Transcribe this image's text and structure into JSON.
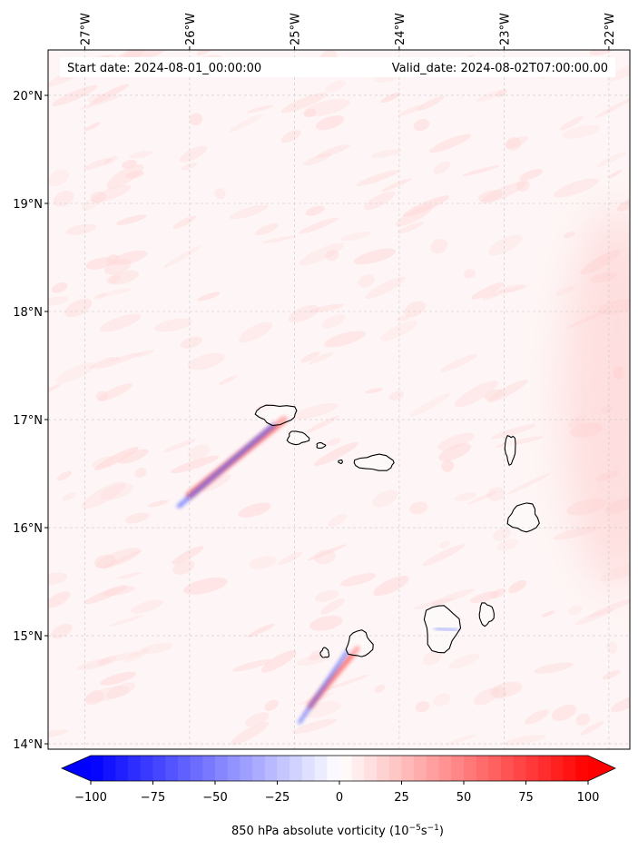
{
  "header": {
    "start_date": "Start date: 2024-08-01_00:00:00",
    "valid_date": "Valid_date: 2024-08-02T07:00:00.00"
  },
  "map": {
    "lon_min": -27.35,
    "lon_max": -21.8,
    "lat_min": 13.95,
    "lat_max": 20.42,
    "lon_ticks": [
      {
        "value": -27,
        "label": "27°W"
      },
      {
        "value": -26,
        "label": "26°W"
      },
      {
        "value": -25,
        "label": "25°W"
      },
      {
        "value": -24,
        "label": "24°W"
      },
      {
        "value": -23,
        "label": "23°W"
      },
      {
        "value": -22,
        "label": "22°W"
      }
    ],
    "lat_ticks": [
      {
        "value": 14,
        "label": "14°N"
      },
      {
        "value": 15,
        "label": "15°N"
      },
      {
        "value": 16,
        "label": "16°N"
      },
      {
        "value": 17,
        "label": "17°N"
      },
      {
        "value": 18,
        "label": "18°N"
      },
      {
        "value": 19,
        "label": "19°N"
      },
      {
        "value": 20,
        "label": "20°N"
      }
    ],
    "islands": [
      {
        "name": "Santo Antão",
        "lon": -25.17,
        "lat": 17.05,
        "rlon": 0.19,
        "rlat": 0.09
      },
      {
        "name": "São Vicente",
        "lon": -24.97,
        "lat": 16.83,
        "rlon": 0.1,
        "rlat": 0.06
      },
      {
        "name": "Santa Luzia",
        "lon": -24.75,
        "lat": 16.76,
        "rlon": 0.04,
        "rlat": 0.025
      },
      {
        "name": "Ilhéu Raso",
        "lon": -24.56,
        "lat": 16.61,
        "rlon": 0.02,
        "rlat": 0.015
      },
      {
        "name": "São Nicolau",
        "lon": -24.23,
        "lat": 16.6,
        "rlon": 0.19,
        "rlat": 0.07
      },
      {
        "name": "Sal",
        "lon": -22.94,
        "lat": 16.73,
        "rlon": 0.05,
        "rlat": 0.13
      },
      {
        "name": "Boa Vista",
        "lon": -22.81,
        "lat": 16.09,
        "rlon": 0.14,
        "rlat": 0.13
      },
      {
        "name": "Maio",
        "lon": -23.17,
        "lat": 15.2,
        "rlon": 0.07,
        "rlat": 0.1
      },
      {
        "name": "Santiago",
        "lon": -23.6,
        "lat": 15.07,
        "rlon": 0.16,
        "rlat": 0.22
      },
      {
        "name": "Fogo",
        "lon": -24.38,
        "lat": 14.92,
        "rlon": 0.12,
        "rlat": 0.12
      },
      {
        "name": "Brava",
        "lon": -24.71,
        "lat": 14.84,
        "rlon": 0.04,
        "rlat": 0.045
      }
    ],
    "vorticity_features": [
      {
        "kind": "positive",
        "lon1": -25.1,
        "lat1": 17.0,
        "lon2": -26.0,
        "lat2": 16.3,
        "width": 8
      },
      {
        "kind": "negative",
        "lon1": -25.2,
        "lat1": 16.95,
        "lon2": -26.1,
        "lat2": 16.2,
        "width": 5
      },
      {
        "kind": "positive",
        "lon1": -24.4,
        "lat1": 14.88,
        "lon2": -24.85,
        "lat2": 14.35,
        "width": 6
      },
      {
        "kind": "negative",
        "lon1": -24.5,
        "lat1": 14.85,
        "lon2": -24.95,
        "lat2": 14.2,
        "width": 4
      },
      {
        "kind": "positive",
        "lon1": -23.55,
        "lat1": 14.95,
        "lon2": -23.35,
        "lat2": 14.95,
        "width": 5
      },
      {
        "kind": "negative",
        "lon1": -23.65,
        "lat1": 15.07,
        "lon2": -23.45,
        "lat2": 15.05,
        "width": 4
      }
    ]
  },
  "colorbar": {
    "vmin": -100,
    "vmax": 100,
    "colors": {
      "negative": "#0000ff",
      "zero": "#ffffff",
      "positive": "#ff0000"
    },
    "ticks": [
      {
        "value": -100,
        "label": "−100"
      },
      {
        "value": -75,
        "label": "−75"
      },
      {
        "value": -50,
        "label": "−50"
      },
      {
        "value": -25,
        "label": "−25"
      },
      {
        "value": 0,
        "label": "0"
      },
      {
        "value": 25,
        "label": "25"
      },
      {
        "value": 50,
        "label": "50"
      },
      {
        "value": 75,
        "label": "75"
      },
      {
        "value": 100,
        "label": "100"
      }
    ],
    "label_main": "850 hPa absolute vorticity (10",
    "label_exp1": "−5",
    "label_mid": "s",
    "label_exp2": "−1",
    "label_end": ")"
  }
}
